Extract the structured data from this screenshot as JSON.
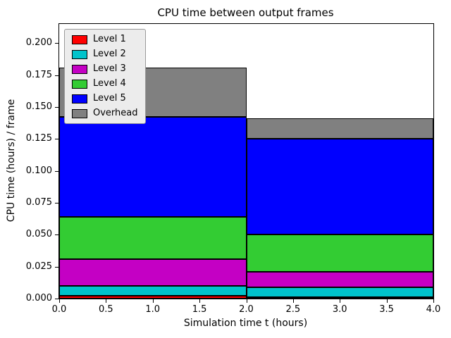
{
  "chart_data": {
    "type": "bar",
    "stacked": true,
    "title": "CPU time between output frames",
    "xlabel": "Simulation time t (hours)",
    "ylabel": "CPU time (hours) / frame",
    "grid": false,
    "legend_position": "upper left",
    "xlim": [
      0,
      4
    ],
    "ylim": [
      0,
      0.215
    ],
    "x_edges": [
      0,
      2,
      4
    ],
    "x_ticks": [
      0.0,
      0.5,
      1.0,
      1.5,
      2.0,
      2.5,
      3.0,
      3.5,
      4.0
    ],
    "x_tick_labels": [
      "0.0",
      "0.5",
      "1.0",
      "1.5",
      "2.0",
      "2.5",
      "3.0",
      "3.5",
      "4.0"
    ],
    "y_ticks": [
      0.0,
      0.025,
      0.05,
      0.075,
      0.1,
      0.125,
      0.15,
      0.175,
      0.2
    ],
    "y_tick_labels": [
      "0.000",
      "0.025",
      "0.050",
      "0.075",
      "0.100",
      "0.125",
      "0.150",
      "0.175",
      "0.200"
    ],
    "series": [
      {
        "name": "Level 1",
        "color": "#ff0000",
        "values": [
          0.002,
          0.001
        ]
      },
      {
        "name": "Level 2",
        "color": "#00c3cb",
        "values": [
          0.008,
          0.008
        ]
      },
      {
        "name": "Level 3",
        "color": "#c400c4",
        "values": [
          0.021,
          0.012
        ]
      },
      {
        "name": "Level 4",
        "color": "#33cc33",
        "values": [
          0.033,
          0.029
        ]
      },
      {
        "name": "Level 5",
        "color": "#0000ff",
        "values": [
          0.078,
          0.075
        ]
      },
      {
        "name": "Overhead",
        "color": "#808080",
        "values": [
          0.039,
          0.016
        ]
      }
    ],
    "bar_totals": [
      0.181,
      0.141
    ],
    "edge_color": "#000000"
  }
}
